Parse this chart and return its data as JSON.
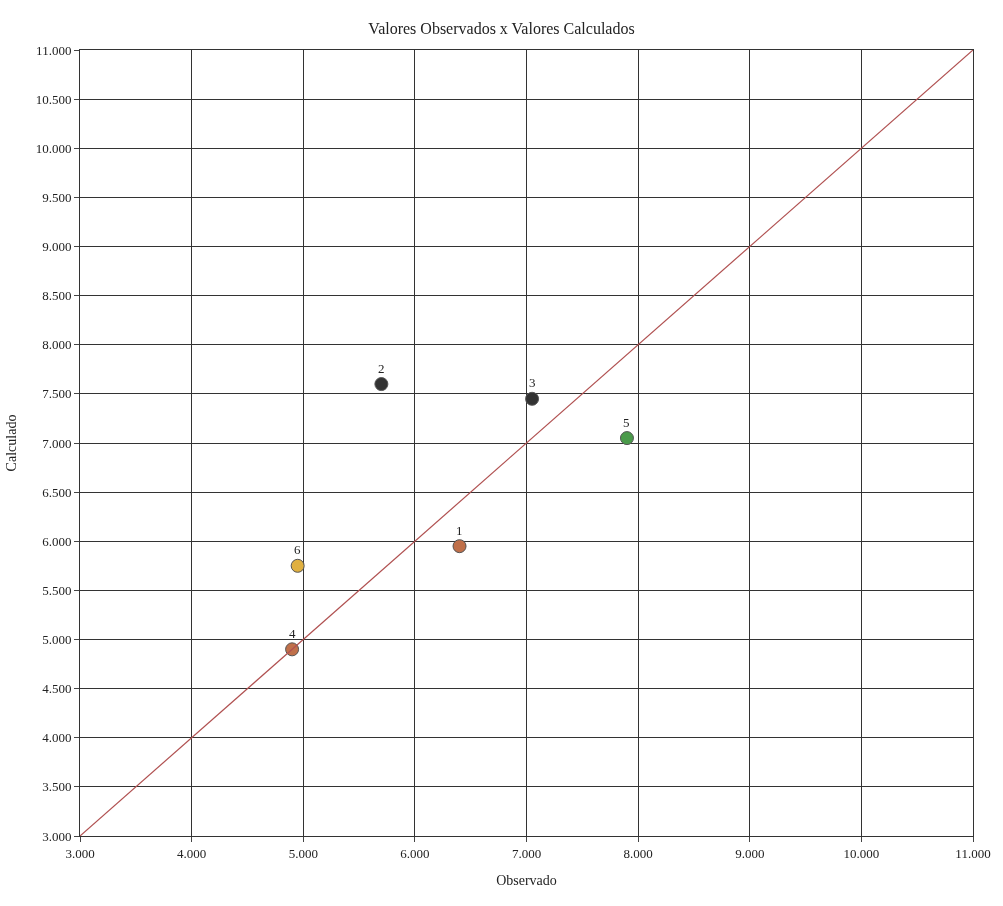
{
  "chart_data": {
    "type": "scatter",
    "title": "Valores Observados x Valores Calculados",
    "xlabel": "Observado",
    "ylabel": "Calculado",
    "x": [
      6400,
      5700,
      7050,
      4900,
      7900,
      4950
    ],
    "series": [
      {
        "marker": "circle",
        "colors": [
          "#c0704a",
          "#333333",
          "#333333",
          "#c0704a",
          "#4a9a4a",
          "#e0b040"
        ],
        "values": [
          5950,
          7600,
          7450,
          4900,
          7050,
          5750
        ]
      },
      {
        "type": "line",
        "color": "#b05050",
        "x": [
          3000,
          11000
        ],
        "values": [
          3000,
          11000
        ]
      }
    ],
    "annotations": [
      {
        "text": "1",
        "x": 6400,
        "y": 5950
      },
      {
        "text": "2",
        "x": 5700,
        "y": 7600
      },
      {
        "text": "3",
        "x": 7050,
        "y": 7450
      },
      {
        "text": "4",
        "x": 4900,
        "y": 4900
      },
      {
        "text": "5",
        "x": 7900,
        "y": 7050
      },
      {
        "text": "6",
        "x": 4950,
        "y": 5750
      }
    ],
    "xlim": [
      3000,
      11000
    ],
    "xticks": [
      {
        "value": 3000,
        "label": "3.000"
      },
      {
        "value": 4000,
        "label": "4.000"
      },
      {
        "value": 5000,
        "label": "5.000"
      },
      {
        "value": 6000,
        "label": "6.000"
      },
      {
        "value": 7000,
        "label": "7.000"
      },
      {
        "value": 8000,
        "label": "8.000"
      },
      {
        "value": 9000,
        "label": "9.000"
      },
      {
        "value": 10000,
        "label": "10.000"
      },
      {
        "value": 11000,
        "label": "11.000"
      }
    ],
    "ylim": [
      3000,
      11000
    ],
    "yticks": [
      {
        "value": 3000,
        "label": "3.000"
      },
      {
        "value": 3500,
        "label": "3.500"
      },
      {
        "value": 4000,
        "label": "4.000"
      },
      {
        "value": 4500,
        "label": "4.500"
      },
      {
        "value": 5000,
        "label": "5.000"
      },
      {
        "value": 5500,
        "label": "5.500"
      },
      {
        "value": 6000,
        "label": "6.000"
      },
      {
        "value": 6500,
        "label": "6.500"
      },
      {
        "value": 7000,
        "label": "7.000"
      },
      {
        "value": 7500,
        "label": "7.500"
      },
      {
        "value": 8000,
        "label": "8.000"
      },
      {
        "value": 8500,
        "label": "8.500"
      },
      {
        "value": 9000,
        "label": "9.000"
      },
      {
        "value": 9500,
        "label": "9.500"
      },
      {
        "value": 10000,
        "label": "10.000"
      },
      {
        "value": 10500,
        "label": "10.500"
      },
      {
        "value": 11000,
        "label": "11.000"
      }
    ],
    "grid": true
  }
}
